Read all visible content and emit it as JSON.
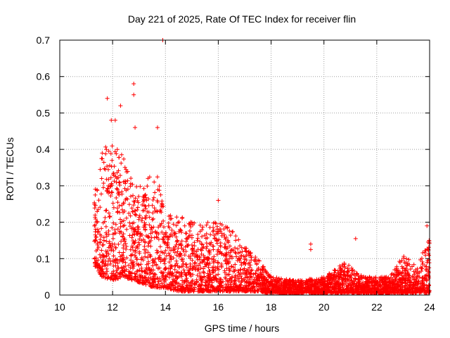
{
  "chart_data": {
    "type": "scatter",
    "title": "Day 221 of 2025, Rate Of TEC Index for receiver flin",
    "xlabel": "GPS time / hours",
    "ylabel": "ROTI / TECUs",
    "xlim": [
      10,
      24
    ],
    "ylim": [
      0,
      0.7
    ],
    "xticks": [
      "10",
      "12",
      "14",
      "16",
      "18",
      "20",
      "22",
      "24"
    ],
    "yticks": [
      "0",
      "0.1",
      "0.2",
      "0.3",
      "0.4",
      "0.5",
      "0.6",
      "0.7"
    ],
    "grid": "dotted",
    "marker": "+",
    "color": "#ff0000",
    "notable_points": [
      [
        11.8,
        0.54
      ],
      [
        12.3,
        0.52
      ],
      [
        12.8,
        0.58
      ],
      [
        12.8,
        0.55
      ],
      [
        12.85,
        0.46
      ],
      [
        13.9,
        0.7
      ],
      [
        13.7,
        0.46
      ],
      [
        11.95,
        0.48
      ],
      [
        12.1,
        0.48
      ],
      [
        16.0,
        0.26
      ],
      [
        19.5,
        0.14
      ],
      [
        19.5,
        0.125
      ],
      [
        21.2,
        0.155
      ],
      [
        23.9,
        0.19
      ]
    ],
    "envelope": [
      {
        "x": 11.3,
        "ymin": 0.08,
        "ymax": 0.32
      },
      {
        "x": 11.6,
        "ymin": 0.05,
        "ymax": 0.4
      },
      {
        "x": 12.0,
        "ymin": 0.04,
        "ymax": 0.42
      },
      {
        "x": 12.4,
        "ymin": 0.05,
        "ymax": 0.38
      },
      {
        "x": 12.8,
        "ymin": 0.04,
        "ymax": 0.3
      },
      {
        "x": 13.2,
        "ymin": 0.03,
        "ymax": 0.3
      },
      {
        "x": 13.6,
        "ymin": 0.02,
        "ymax": 0.36
      },
      {
        "x": 14.0,
        "ymin": 0.02,
        "ymax": 0.22
      },
      {
        "x": 14.5,
        "ymin": 0.01,
        "ymax": 0.22
      },
      {
        "x": 15.0,
        "ymin": 0.01,
        "ymax": 0.2
      },
      {
        "x": 15.5,
        "ymin": 0.01,
        "ymax": 0.2
      },
      {
        "x": 16.0,
        "ymin": 0.01,
        "ymax": 0.2
      },
      {
        "x": 16.5,
        "ymin": 0.01,
        "ymax": 0.18
      },
      {
        "x": 17.0,
        "ymin": 0.01,
        "ymax": 0.14
      },
      {
        "x": 17.5,
        "ymin": 0.01,
        "ymax": 0.1
      },
      {
        "x": 18.0,
        "ymin": 0.005,
        "ymax": 0.05
      },
      {
        "x": 19.0,
        "ymin": 0.005,
        "ymax": 0.04
      },
      {
        "x": 20.0,
        "ymin": 0.005,
        "ymax": 0.05
      },
      {
        "x": 20.8,
        "ymin": 0.005,
        "ymax": 0.09
      },
      {
        "x": 21.5,
        "ymin": 0.005,
        "ymax": 0.05
      },
      {
        "x": 22.5,
        "ymin": 0.005,
        "ymax": 0.05
      },
      {
        "x": 23.0,
        "ymin": 0.005,
        "ymax": 0.11
      },
      {
        "x": 23.5,
        "ymin": 0.005,
        "ymax": 0.08
      },
      {
        "x": 24.0,
        "ymin": 0.005,
        "ymax": 0.16
      }
    ]
  }
}
